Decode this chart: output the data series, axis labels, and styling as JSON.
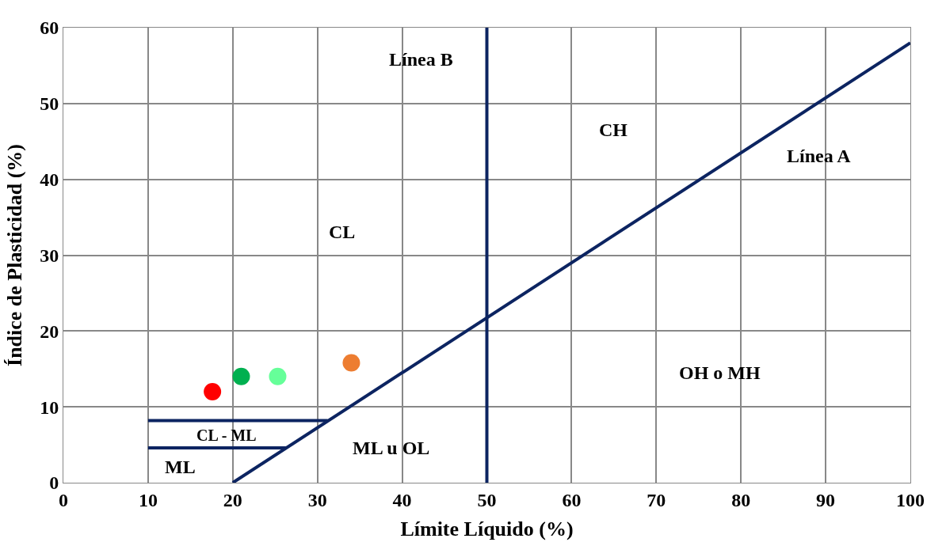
{
  "chart_data": {
    "type": "scatter",
    "xlabel": "Límite Líquido (%)",
    "ylabel": "Índice de Plasticidad (%)",
    "xlim": [
      0,
      100
    ],
    "ylim": [
      0,
      60
    ],
    "xticks": [
      0,
      10,
      20,
      30,
      40,
      50,
      60,
      70,
      80,
      90,
      100
    ],
    "yticks": [
      0,
      10,
      20,
      30,
      40,
      50,
      60
    ],
    "grid": true,
    "series": [
      {
        "x": [
          17.6
        ],
        "values": [
          12.0
        ],
        "color": "#ff0000",
        "marker": "circle"
      },
      {
        "x": [
          21.0
        ],
        "values": [
          14.0
        ],
        "color": "#00b050",
        "marker": "circle"
      },
      {
        "x": [
          25.3
        ],
        "values": [
          14.0
        ],
        "color": "#66ff99",
        "marker": "circle"
      },
      {
        "x": [
          34.0
        ],
        "values": [
          15.8
        ],
        "color": "#ed7d31",
        "marker": "circle"
      },
      {
        "type": "line",
        "x": [
          20,
          100
        ],
        "values": [
          0,
          58
        ],
        "color": "#0c2461"
      },
      {
        "type": "line",
        "x": [
          50,
          50
        ],
        "values": [
          0,
          60
        ],
        "color": "#0c2461"
      },
      {
        "type": "line",
        "x": [
          10,
          31.2
        ],
        "values": [
          8.2,
          8.2
        ],
        "color": "#0c2461"
      },
      {
        "type": "line",
        "x": [
          10,
          26.3
        ],
        "values": [
          4.6,
          4.6
        ],
        "color": "#0c2461"
      }
    ],
    "annotations": [
      "Línea B",
      "CH",
      "Línea A",
      "CL",
      "OH o MH",
      "CL - ML",
      "ML u OL",
      "ML"
    ]
  }
}
